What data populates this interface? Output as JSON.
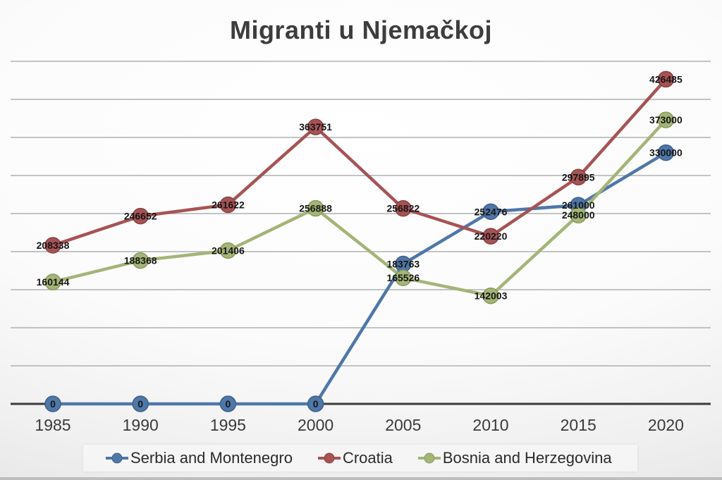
{
  "title": "Migranti u Njemačkoj",
  "chart_data": {
    "type": "line",
    "title": "Migranti u Njemačkoj",
    "xlabel": "",
    "ylabel": "",
    "x_labels": [
      "1985",
      "1990",
      "1995",
      "2000",
      "2005",
      "2010",
      "2015",
      "2020"
    ],
    "series": [
      {
        "name": "Serbia and Montenegro",
        "color": "#4F77A8",
        "edge": "#3D5F8A",
        "values": [
          0,
          0,
          0,
          0,
          183763,
          252476,
          261000,
          330000
        ]
      },
      {
        "name": "Croatia",
        "color": "#A65355",
        "edge": "#8C4143",
        "values": [
          208338,
          246652,
          261622,
          363751,
          256822,
          220220,
          297895,
          426485
        ]
      },
      {
        "name": "Bosnia and Herzegovina",
        "color": "#A3B577",
        "edge": "#899B5C",
        "values": [
          160144,
          188368,
          201406,
          256888,
          165526,
          142003,
          248000,
          373000
        ]
      }
    ],
    "ylim": [
      0,
      450000
    ],
    "grid": true,
    "gridline_step": 50000,
    "y_tick_labels_visible": false,
    "data_labels": true,
    "legend_position": "bottom",
    "colors": {
      "grid": "#AEB1B1",
      "axis": "#3A3A3A",
      "data_label": "#161616",
      "tick_label": "#3A3A3A",
      "title": "#3D3D3D"
    }
  }
}
